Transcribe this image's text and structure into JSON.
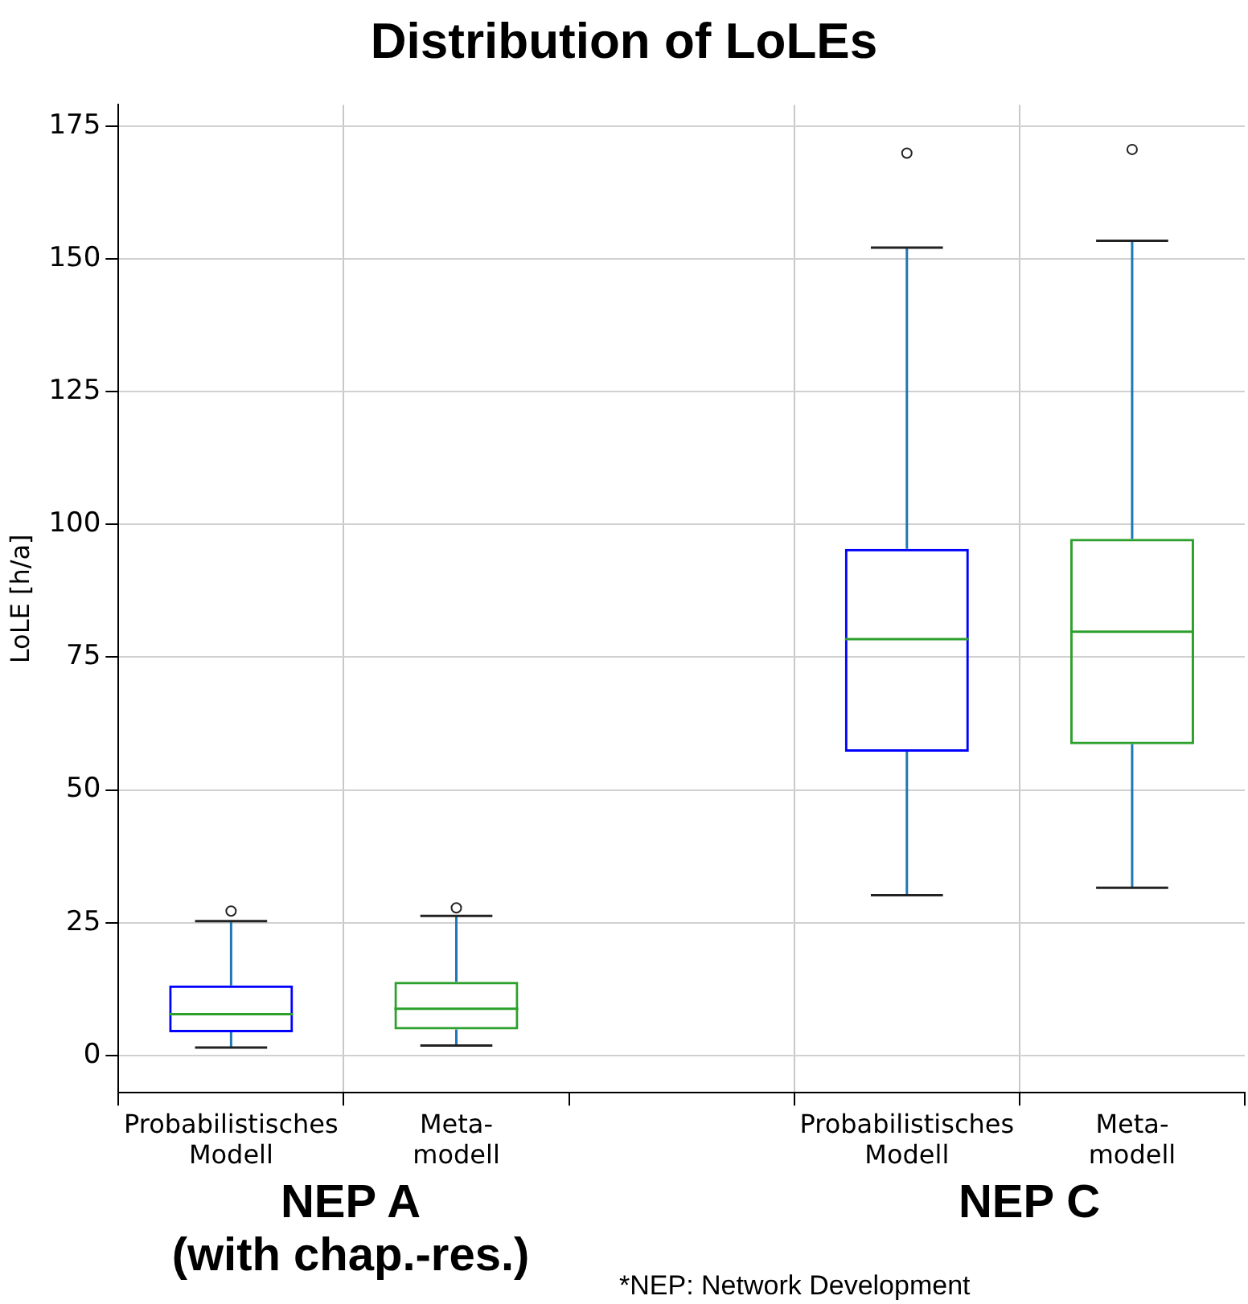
{
  "chart_data": {
    "type": "box",
    "title": "Distribution of LoLEs",
    "ylabel": "LoLE [h/a]",
    "categories": [
      "Probabilistisches\nModell",
      "Meta-\nmodell",
      null,
      "Probabilistisches\nModell",
      "Meta-\nmodell"
    ],
    "boxes": [
      {
        "low": 1.5,
        "q1": 4.4,
        "median": 7.8,
        "q3": 13.2,
        "high": 25.3,
        "outliers": [
          27.2
        ]
      },
      {
        "low": 1.9,
        "q1": 4.9,
        "median": 8.8,
        "q3": 13.9,
        "high": 26.3,
        "outliers": [
          27.8
        ]
      },
      null,
      {
        "low": 30.2,
        "q1": 57.2,
        "median": 78.4,
        "q3": 95.4,
        "high": 152.1,
        "outliers": [
          169.9
        ]
      },
      {
        "low": 31.6,
        "q1": 58.6,
        "median": 79.8,
        "q3": 97.3,
        "high": 153.4,
        "outliers": [
          170.6
        ]
      }
    ],
    "colors": [
      "#0000ff",
      "#2ca02c",
      null,
      "#0000ff",
      "#2ca02c"
    ],
    "ylim": [
      -7,
      179
    ],
    "yticks": [
      0,
      25,
      50,
      75,
      100,
      125,
      150,
      175
    ],
    "grid": true,
    "legend": false,
    "annotations": [
      "NEP A\n(with chap.-res.)",
      "NEP C",
      "*NEP: Network Development"
    ]
  }
}
